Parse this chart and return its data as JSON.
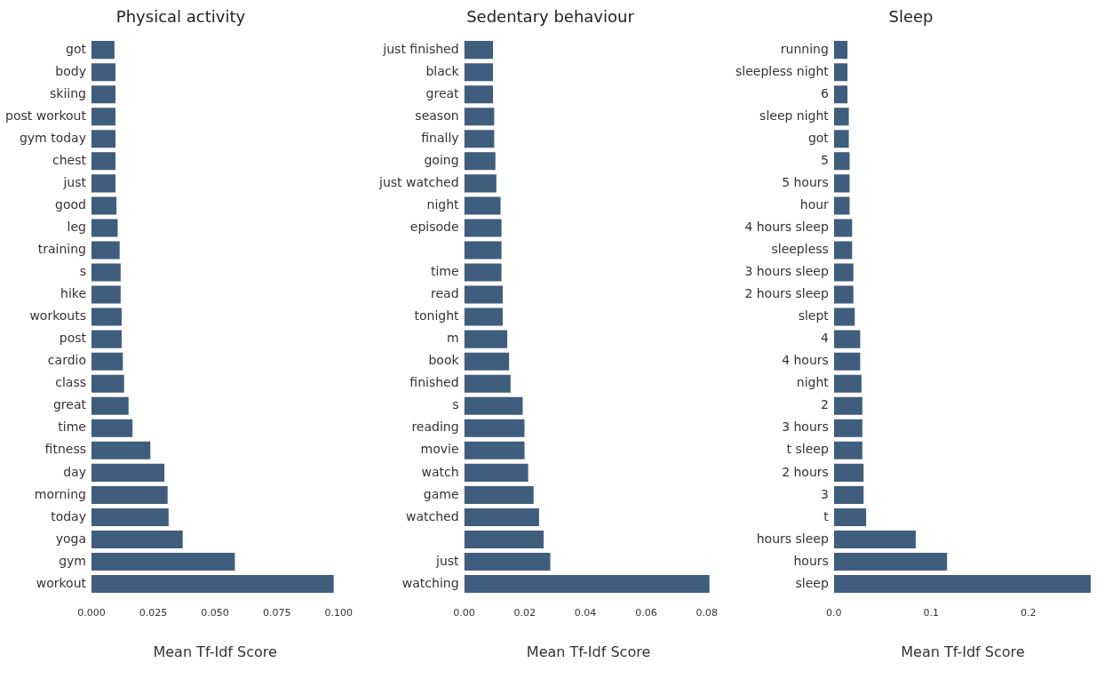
{
  "chart_data": [
    {
      "type": "bar",
      "orientation": "horizontal",
      "title": "Physical activity",
      "xlabel": "Mean Tf-Idf Score",
      "color": "#3f5d7d",
      "grid": false,
      "legend": false,
      "categories": [
        "got",
        "body",
        "skiing",
        "post workout",
        "gym today",
        "chest",
        "just",
        "good",
        "leg",
        "training",
        "s",
        "hike",
        "workouts",
        "post",
        "cardio",
        "class",
        "great",
        "time",
        "fitness",
        "day",
        "morning",
        "today",
        "yoga",
        "gym",
        "workout"
      ],
      "values": [
        0.0093,
        0.0097,
        0.0097,
        0.0097,
        0.0097,
        0.0097,
        0.0097,
        0.0101,
        0.0106,
        0.0114,
        0.0118,
        0.0118,
        0.0122,
        0.0122,
        0.0127,
        0.0132,
        0.015,
        0.0166,
        0.0238,
        0.0295,
        0.0308,
        0.0312,
        0.0369,
        0.058,
        0.098
      ],
      "xlim": [
        0,
        0.1
      ],
      "xticks": [
        {
          "value": 0,
          "label": "0.000"
        },
        {
          "value": 0.025,
          "label": "0.025"
        },
        {
          "value": 0.05,
          "label": "0.050"
        },
        {
          "value": 0.075,
          "label": "0.075"
        },
        {
          "value": 0.1,
          "label": "0.100"
        }
      ]
    },
    {
      "type": "bar",
      "orientation": "horizontal",
      "title": "Sedentary behaviour",
      "xlabel": "Mean Tf-Idf Score",
      "color": "#3f5d7d",
      "grid": false,
      "legend": false,
      "categories": [
        "just finished",
        "black",
        "great",
        "season",
        "finally",
        "going",
        "just watched",
        "night",
        "episode",
        null,
        "time",
        "read",
        "tonight",
        "m",
        "book",
        "finished",
        "s",
        "reading",
        "movie",
        "watch",
        "game",
        "watched",
        null,
        "just",
        "watching"
      ],
      "values": [
        0.0095,
        0.0095,
        0.0095,
        0.0099,
        0.0099,
        0.0103,
        0.0106,
        0.012,
        0.0123,
        0.0123,
        0.0123,
        0.0127,
        0.0127,
        0.0142,
        0.0148,
        0.0153,
        0.0193,
        0.0199,
        0.0199,
        0.0211,
        0.0229,
        0.0247,
        0.0262,
        0.0284,
        0.0809
      ],
      "xlim": [
        0,
        0.082
      ],
      "xticks": [
        {
          "value": 0,
          "label": "0.00"
        },
        {
          "value": 0.02,
          "label": "0.02"
        },
        {
          "value": 0.04,
          "label": "0.04"
        },
        {
          "value": 0.06,
          "label": "0.06"
        },
        {
          "value": 0.08,
          "label": "0.08"
        }
      ]
    },
    {
      "type": "bar",
      "orientation": "horizontal",
      "title": "Sleep",
      "xlabel": "Mean Tf-Idf Score",
      "color": "#3f5d7d",
      "grid": false,
      "legend": false,
      "categories": [
        "running",
        "sleepless night",
        "6",
        "sleep night",
        "got",
        "5",
        "5 hours",
        "hour",
        "4 hours sleep",
        "sleepless",
        "3 hours sleep",
        "2 hours sleep",
        "slept",
        "4",
        "4 hours",
        "night",
        "2",
        "3 hours",
        "t sleep",
        "2 hours",
        "3",
        "t",
        "hours sleep",
        "hours",
        "sleep"
      ],
      "values": [
        0.0139,
        0.0139,
        0.0139,
        0.0153,
        0.0153,
        0.0161,
        0.0161,
        0.0161,
        0.0187,
        0.0187,
        0.02,
        0.02,
        0.0214,
        0.027,
        0.027,
        0.0283,
        0.0292,
        0.0292,
        0.0292,
        0.0305,
        0.0305,
        0.0331,
        0.0841,
        0.1163,
        0.264
      ],
      "xlim": [
        0,
        0.265
      ],
      "xticks": [
        {
          "value": 0,
          "label": "0.0"
        },
        {
          "value": 0.1,
          "label": "0.1"
        },
        {
          "value": 0.2,
          "label": "0.2"
        }
      ]
    }
  ]
}
